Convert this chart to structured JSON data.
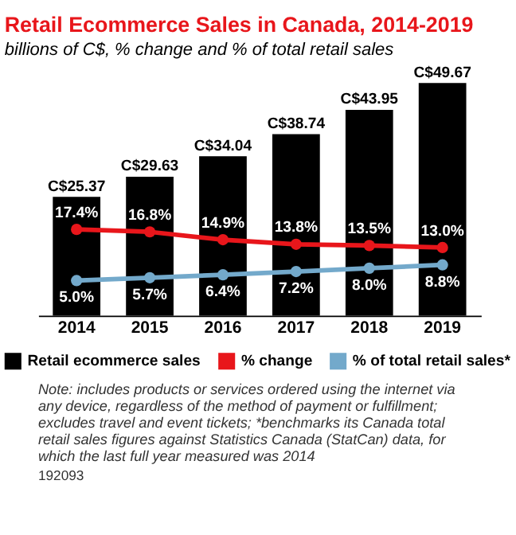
{
  "chart_data": {
    "type": "bar",
    "title": "Retail Ecommerce Sales in Canada, 2014-2019",
    "subtitle": "billions of C$, % change and % of total retail sales",
    "categories": [
      "2014",
      "2015",
      "2016",
      "2017",
      "2018",
      "2019"
    ],
    "series": [
      {
        "name": "Retail ecommerce sales",
        "color": "#000000",
        "values": [
          25.37,
          29.63,
          34.04,
          38.74,
          43.95,
          49.67
        ],
        "value_labels": [
          "C$25.37",
          "C$29.63",
          "C$34.04",
          "C$38.74",
          "C$43.95",
          "C$49.67"
        ]
      },
      {
        "name": "% change",
        "type": "line",
        "axis": "y2",
        "color": "#e8161b",
        "values": [
          17.4,
          16.8,
          14.9,
          13.8,
          13.5,
          13.0
        ],
        "value_labels": [
          "17.4%",
          "16.8%",
          "14.9%",
          "13.8%",
          "13.5%",
          "13.0%"
        ]
      },
      {
        "name": "% of total retail sales*",
        "type": "line",
        "axis": "y2",
        "color": "#73a9cb",
        "values": [
          5.0,
          5.7,
          6.4,
          7.2,
          8.0,
          8.8
        ],
        "value_labels": [
          "5.0%",
          "5.7%",
          "6.4%",
          "7.2%",
          "8.0%",
          "8.8%"
        ]
      }
    ],
    "tick_labels": "x",
    "marker": "circle",
    "legend": "bottom",
    "grid": false,
    "annotations": [
      "Note: includes products or services ordered using the internet via any device, regardless of the method of payment or fulfillment; excludes travel and event tickets; *benchmarks its Canada total retail sales figures against Statistics Canada (StatCan) data, for which the last full year measured was 2014",
      "192093"
    ]
  }
}
